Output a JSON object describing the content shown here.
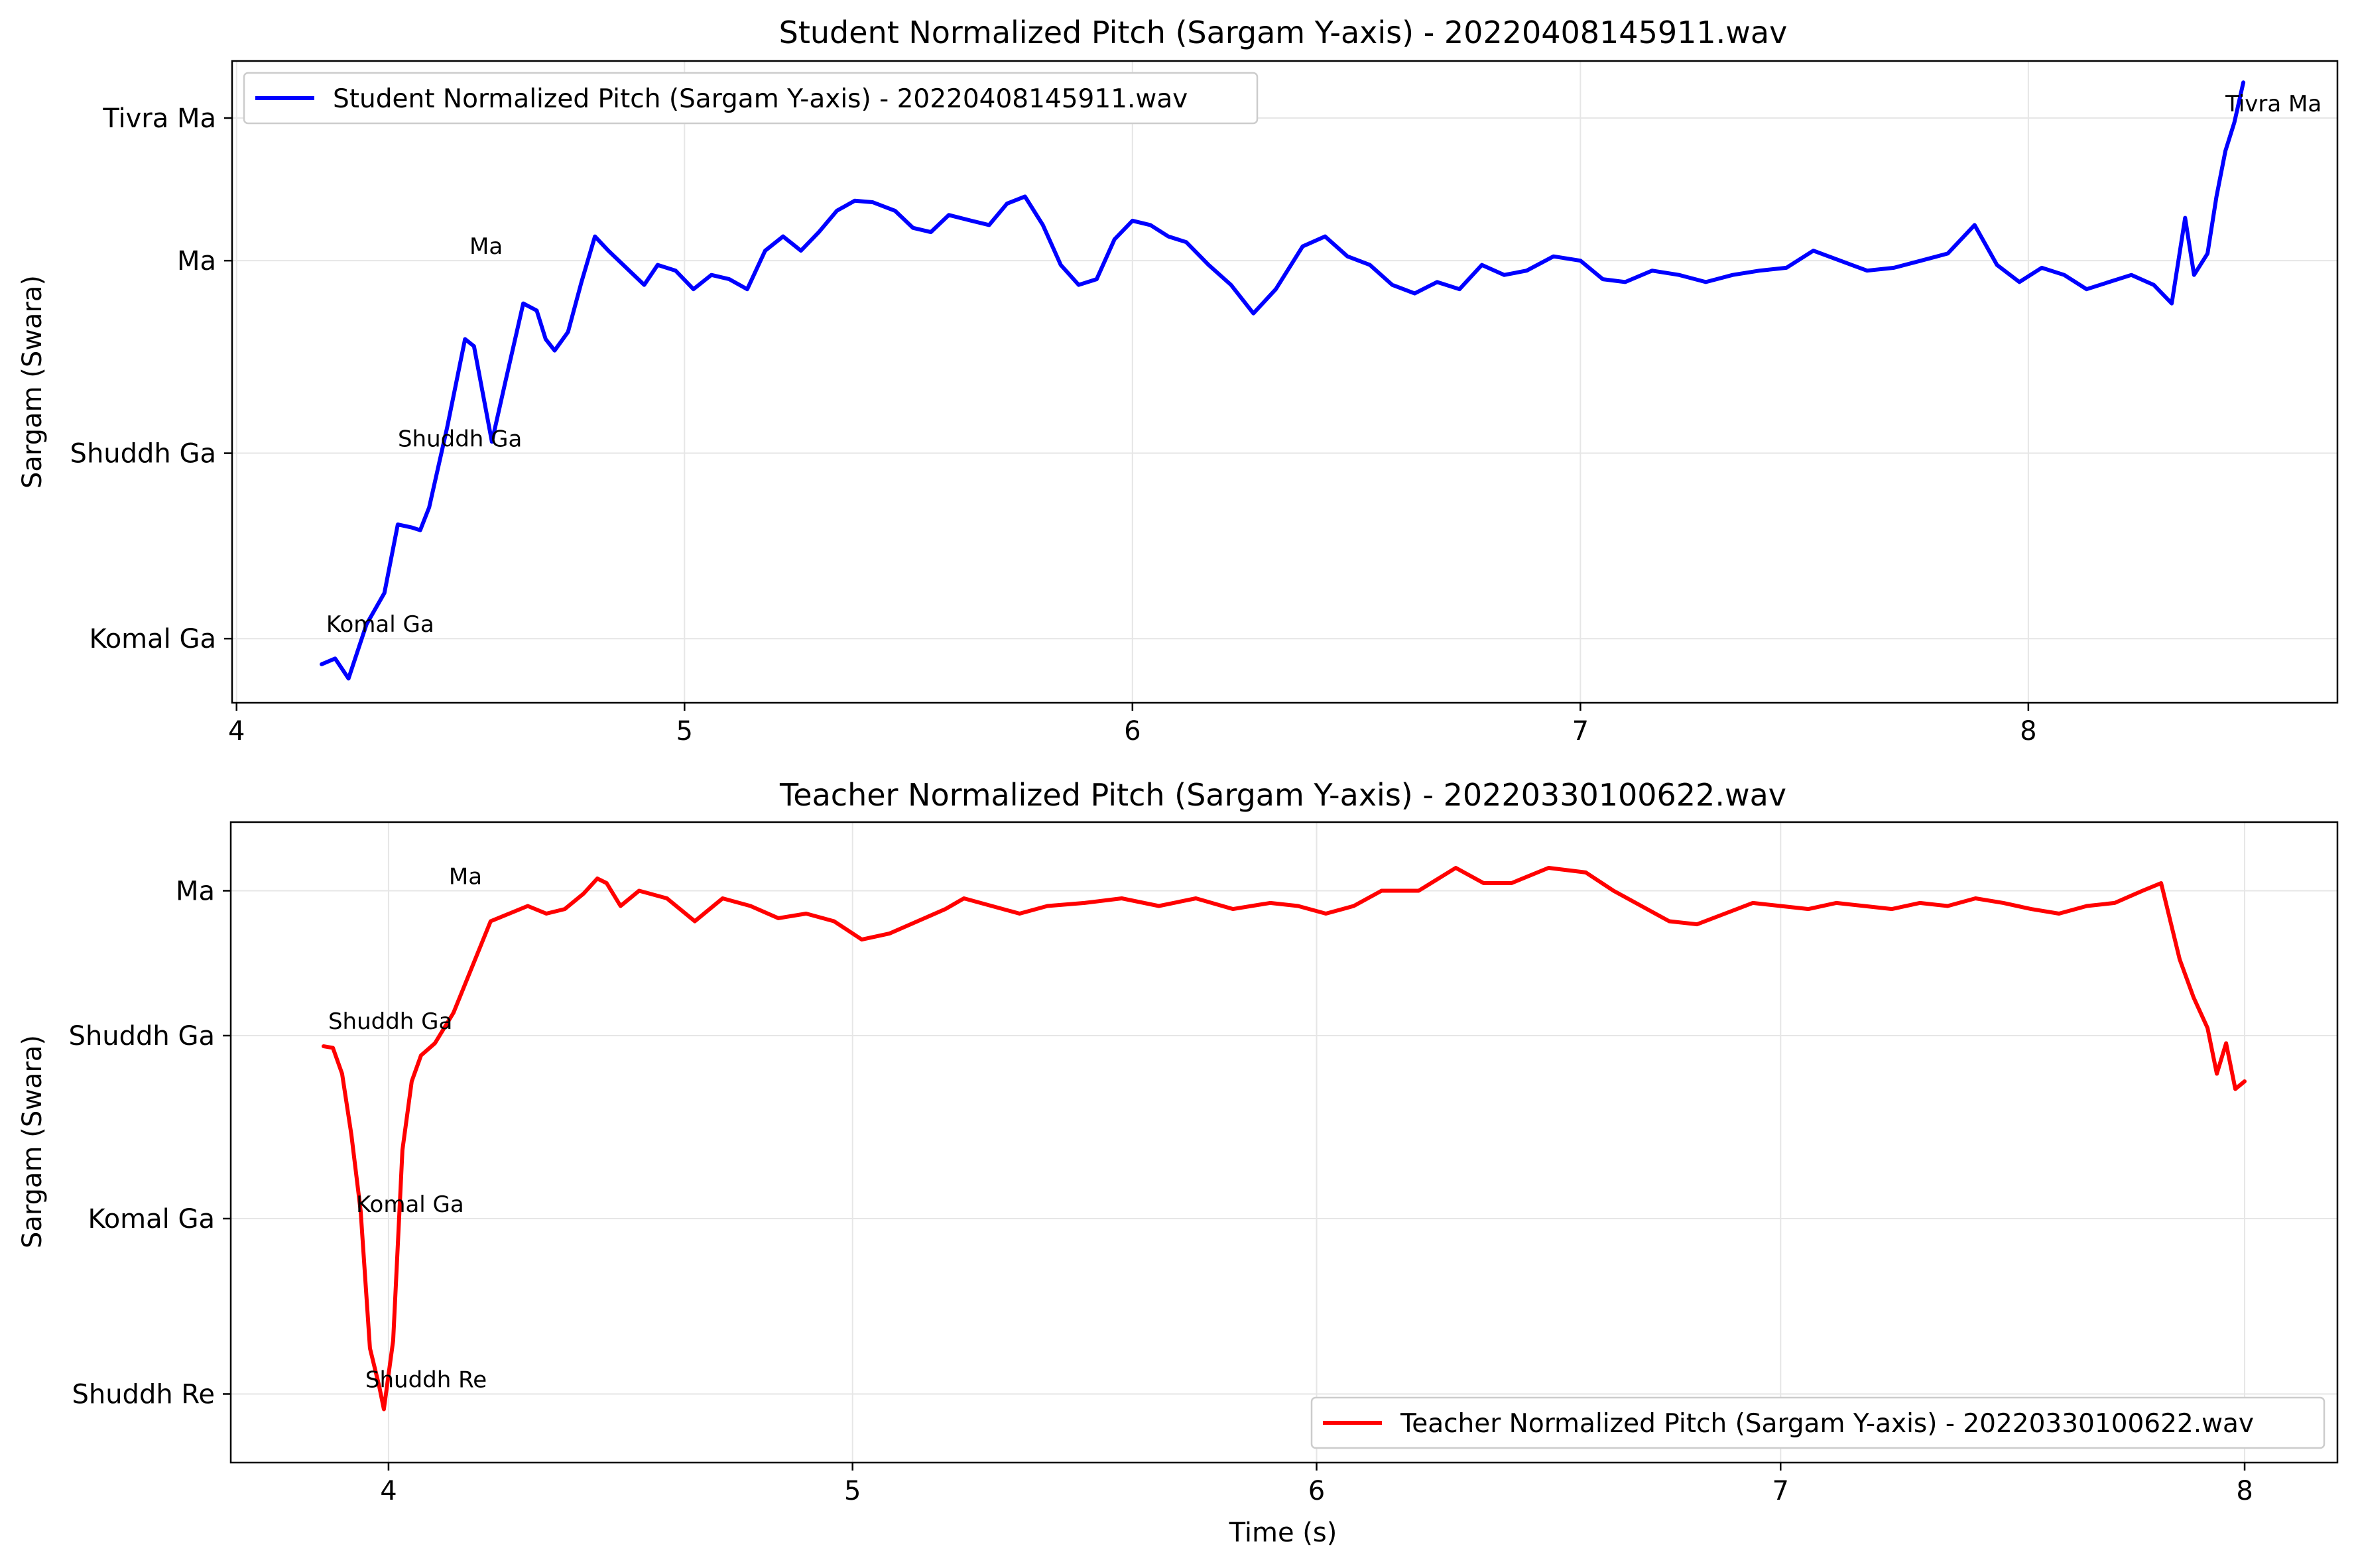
{
  "chart_data": [
    {
      "type": "line",
      "title": "Student Normalized Pitch (Sargam Y-axis) - 20220408145911.wav",
      "xlabel": "",
      "ylabel": "Sargam (Swara)",
      "xlim": [
        3.99,
        8.69
      ],
      "ylim": [
        -0.45,
        4.05
      ],
      "xticks": [
        4,
        5,
        6,
        7,
        8
      ],
      "xtick_labels": [
        "4",
        "5",
        "6",
        "7",
        "8"
      ],
      "yticks": [
        0,
        1.3,
        2.65,
        3.65
      ],
      "ytick_labels": [
        "Komal Ga",
        "Shuddh Ga",
        "Ma",
        "Tivra Ma"
      ],
      "grid": true,
      "legend": "upper left",
      "series": [
        {
          "name": "Student Normalized Pitch (Sargam Y-axis) - 20220408145911.wav",
          "color": "#0000ff",
          "x": [
            4.19,
            4.22,
            4.25,
            4.29,
            4.33,
            4.36,
            4.39,
            4.41,
            4.43,
            4.47,
            4.51,
            4.53,
            4.57,
            4.6,
            4.64,
            4.67,
            4.69,
            4.71,
            4.74,
            4.77,
            4.8,
            4.83,
            4.87,
            4.91,
            4.94,
            4.98,
            5.02,
            5.06,
            5.1,
            5.14,
            5.18,
            5.22,
            5.26,
            5.3,
            5.34,
            5.38,
            5.42,
            5.47,
            5.51,
            5.55,
            5.59,
            5.64,
            5.68,
            5.72,
            5.76,
            5.8,
            5.84,
            5.88,
            5.92,
            5.96,
            6.0,
            6.04,
            6.08,
            6.12,
            6.17,
            6.22,
            6.27,
            6.32,
            6.38,
            6.43,
            6.48,
            6.53,
            6.58,
            6.63,
            6.68,
            6.73,
            6.78,
            6.83,
            6.88,
            6.94,
            7.0,
            7.05,
            7.1,
            7.16,
            7.22,
            7.28,
            7.34,
            7.4,
            7.46,
            7.52,
            7.58,
            7.64,
            7.7,
            7.76,
            7.82,
            7.88,
            7.93,
            7.98,
            8.03,
            8.08,
            8.13,
            8.18,
            8.23,
            8.28,
            8.32,
            8.35,
            8.37,
            8.4,
            8.42,
            8.44,
            8.46,
            8.48
          ],
          "y": [
            -0.18,
            -0.14,
            -0.28,
            0.1,
            0.32,
            0.8,
            0.78,
            0.76,
            0.92,
            1.48,
            2.1,
            2.05,
            1.38,
            1.8,
            2.35,
            2.3,
            2.1,
            2.02,
            2.15,
            2.5,
            2.82,
            2.72,
            2.6,
            2.48,
            2.62,
            2.58,
            2.45,
            2.55,
            2.52,
            2.45,
            2.72,
            2.82,
            2.72,
            2.85,
            3.0,
            3.07,
            3.06,
            3.0,
            2.88,
            2.85,
            2.97,
            2.93,
            2.9,
            3.05,
            3.1,
            2.9,
            2.62,
            2.48,
            2.52,
            2.8,
            2.93,
            2.9,
            2.82,
            2.78,
            2.62,
            2.48,
            2.28,
            2.45,
            2.75,
            2.82,
            2.68,
            2.62,
            2.48,
            2.42,
            2.5,
            2.45,
            2.62,
            2.55,
            2.58,
            2.68,
            2.65,
            2.52,
            2.5,
            2.58,
            2.55,
            2.5,
            2.55,
            2.58,
            2.6,
            2.72,
            2.65,
            2.58,
            2.6,
            2.65,
            2.7,
            2.9,
            2.62,
            2.5,
            2.6,
            2.55,
            2.45,
            2.5,
            2.55,
            2.48,
            2.35,
            2.95,
            2.55,
            2.7,
            3.1,
            3.42,
            3.62,
            3.9
          ]
        }
      ],
      "annotations": [
        {
          "text": "Komal Ga",
          "x": 4.2,
          "y": 0.0
        },
        {
          "text": "Shuddh Ga",
          "x": 4.36,
          "y": 1.3
        },
        {
          "text": "Ma",
          "x": 4.52,
          "y": 2.65
        },
        {
          "text": "Tivra Ma",
          "x": 8.44,
          "y": 3.65
        }
      ]
    },
    {
      "type": "line",
      "title": "Teacher Normalized Pitch (Sargam Y-axis) - 20220330100622.wav",
      "xlabel": "Time (s)",
      "ylabel": "Sargam (Swara)",
      "xlim": [
        3.66,
        8.2
      ],
      "ylim": [
        -0.45,
        3.75
      ],
      "xticks": [
        4,
        5,
        6,
        7,
        8
      ],
      "xtick_labels": [
        "4",
        "5",
        "6",
        "7",
        "8"
      ],
      "yticks": [
        0,
        1.15,
        2.35,
        3.3
      ],
      "ytick_labels": [
        "Shuddh Re",
        "Komal Ga",
        "Shuddh Ga",
        "Ma"
      ],
      "grid": true,
      "legend": "lower right",
      "series": [
        {
          "name": "Teacher Normalized Pitch (Sargam Y-axis) - 20220330100622.wav",
          "color": "#ff0000",
          "x": [
            3.86,
            3.88,
            3.9,
            3.92,
            3.94,
            3.96,
            3.98,
            3.99,
            4.01,
            4.03,
            4.05,
            4.07,
            4.1,
            4.14,
            4.18,
            4.22,
            4.26,
            4.3,
            4.34,
            4.38,
            4.42,
            4.45,
            4.47,
            4.5,
            4.54,
            4.6,
            4.66,
            4.72,
            4.78,
            4.84,
            4.9,
            4.96,
            5.02,
            5.08,
            5.14,
            5.2,
            5.24,
            5.3,
            5.36,
            5.42,
            5.5,
            5.58,
            5.66,
            5.74,
            5.82,
            5.9,
            5.96,
            6.02,
            6.08,
            6.14,
            6.22,
            6.3,
            6.36,
            6.42,
            6.5,
            6.58,
            6.64,
            6.7,
            6.76,
            6.82,
            6.88,
            6.94,
            7.0,
            7.06,
            7.12,
            7.18,
            7.24,
            7.3,
            7.36,
            7.42,
            7.48,
            7.54,
            7.6,
            7.66,
            7.72,
            7.78,
            7.82,
            7.86,
            7.89,
            7.92,
            7.94,
            7.96,
            7.98,
            8.0
          ],
          "y": [
            2.28,
            2.27,
            2.1,
            1.7,
            1.2,
            0.3,
            0.05,
            -0.1,
            0.35,
            1.6,
            2.05,
            2.22,
            2.3,
            2.5,
            2.8,
            3.1,
            3.15,
            3.2,
            3.15,
            3.18,
            3.28,
            3.38,
            3.35,
            3.2,
            3.3,
            3.25,
            3.1,
            3.25,
            3.2,
            3.12,
            3.15,
            3.1,
            2.98,
            3.02,
            3.1,
            3.18,
            3.25,
            3.2,
            3.15,
            3.2,
            3.22,
            3.25,
            3.2,
            3.25,
            3.18,
            3.22,
            3.2,
            3.15,
            3.2,
            3.3,
            3.3,
            3.45,
            3.35,
            3.35,
            3.45,
            3.42,
            3.3,
            3.2,
            3.1,
            3.08,
            3.15,
            3.22,
            3.2,
            3.18,
            3.22,
            3.2,
            3.18,
            3.22,
            3.2,
            3.25,
            3.22,
            3.18,
            3.15,
            3.2,
            3.22,
            3.3,
            3.35,
            2.85,
            2.6,
            2.4,
            2.1,
            2.3,
            2.0,
            2.05
          ]
        }
      ],
      "annotations": [
        {
          "text": "Shuddh Ga",
          "x": 3.87,
          "y": 2.35
        },
        {
          "text": "Komal Ga",
          "x": 3.93,
          "y": 1.15
        },
        {
          "text": "Shuddh Re",
          "x": 3.95,
          "y": 0.0
        },
        {
          "text": "Ma",
          "x": 4.13,
          "y": 3.3
        }
      ]
    }
  ]
}
